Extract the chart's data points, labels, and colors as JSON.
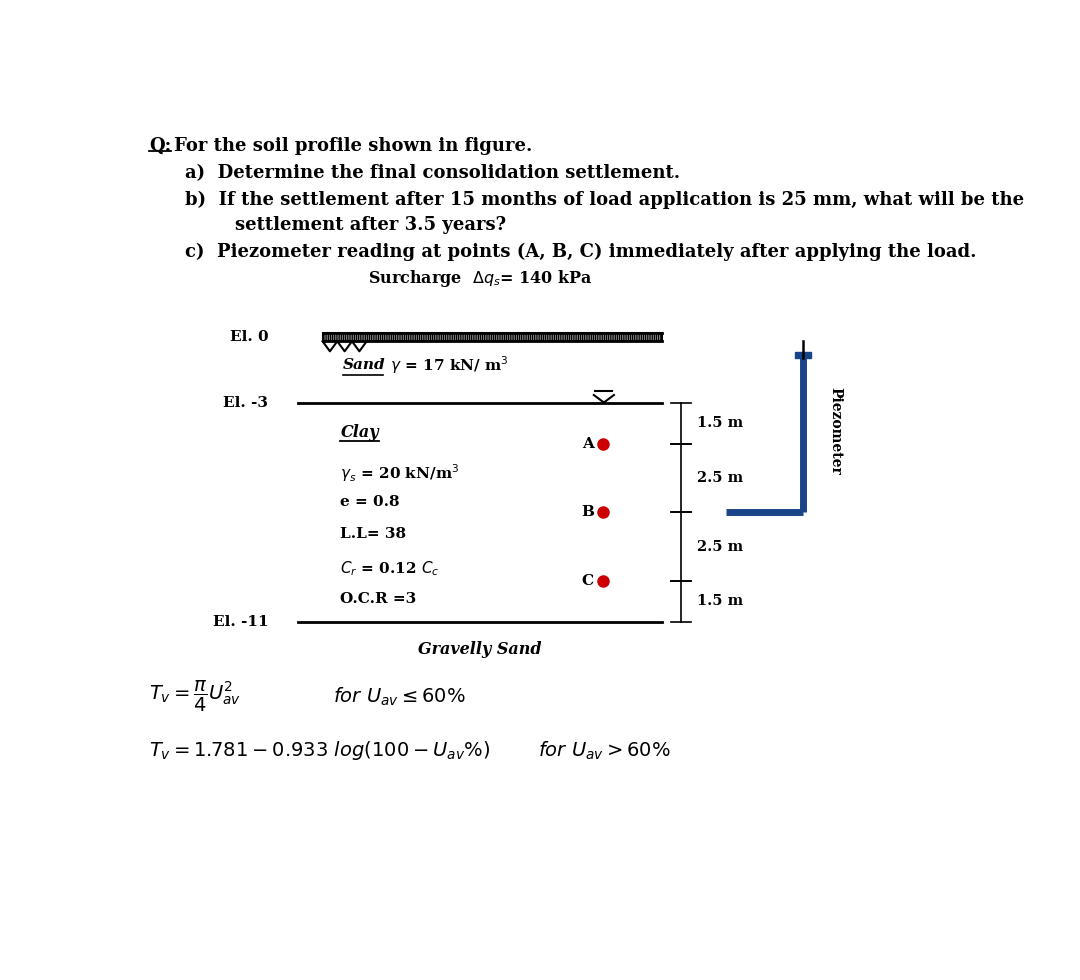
{
  "bg_color": "#ffffff",
  "title_q": "Q:",
  "title_text": "For the soil profile shown in figure.",
  "item_a": "a)  Determine the final consolidation settlement.",
  "item_b1": "b)  If the settlement after 15 months of load application is 25 mm, what will be the",
  "item_b2": "        settlement after 3.5 years?",
  "item_c": "c)  Piezometer reading at points (A, B, C) immediately after applying the load.",
  "el0_label": "El. 0",
  "el_neg3_label": "El. -3",
  "el_neg11_label": "El. -11",
  "surcharge_label": "Surcharge  $\\Delta q_s$= 140 kPa",
  "sand_label": "Sand",
  "sand_props": " $\\gamma$ = 17 kN/ m$^3$",
  "clay_label": "Clay",
  "clay_prop1": "$\\gamma_s$ = 20 kN/m$^3$",
  "clay_prop2": "e = 0.8",
  "clay_prop3": "L.L= 38",
  "clay_prop4": "$C_r$ = 0.12 $C_c$",
  "clay_prop5": "O.C.R =3",
  "gravelly_sand_label": "Gravelly Sand",
  "point_A": "A",
  "point_B": "B",
  "point_C": "C",
  "dim1": "1.5 m",
  "dim2": "2.5 m",
  "dim3": "2.5 m",
  "dim4": "1.5 m",
  "formula1_left": "$T_v = \\dfrac{\\pi}{4} U_{av}^{2}$",
  "formula1_right": "$for\\ U_{av} \\leq 60\\%$",
  "formula2_left": "$T_v = 1.781 - 0.933\\ log( 100 - U_{av}\\% )$",
  "formula2_right": "$for\\ U_{av} > 60\\%$",
  "piezometer_label": "Piezometer",
  "piez_color": "#1a4488",
  "dot_color": "#cc0000"
}
